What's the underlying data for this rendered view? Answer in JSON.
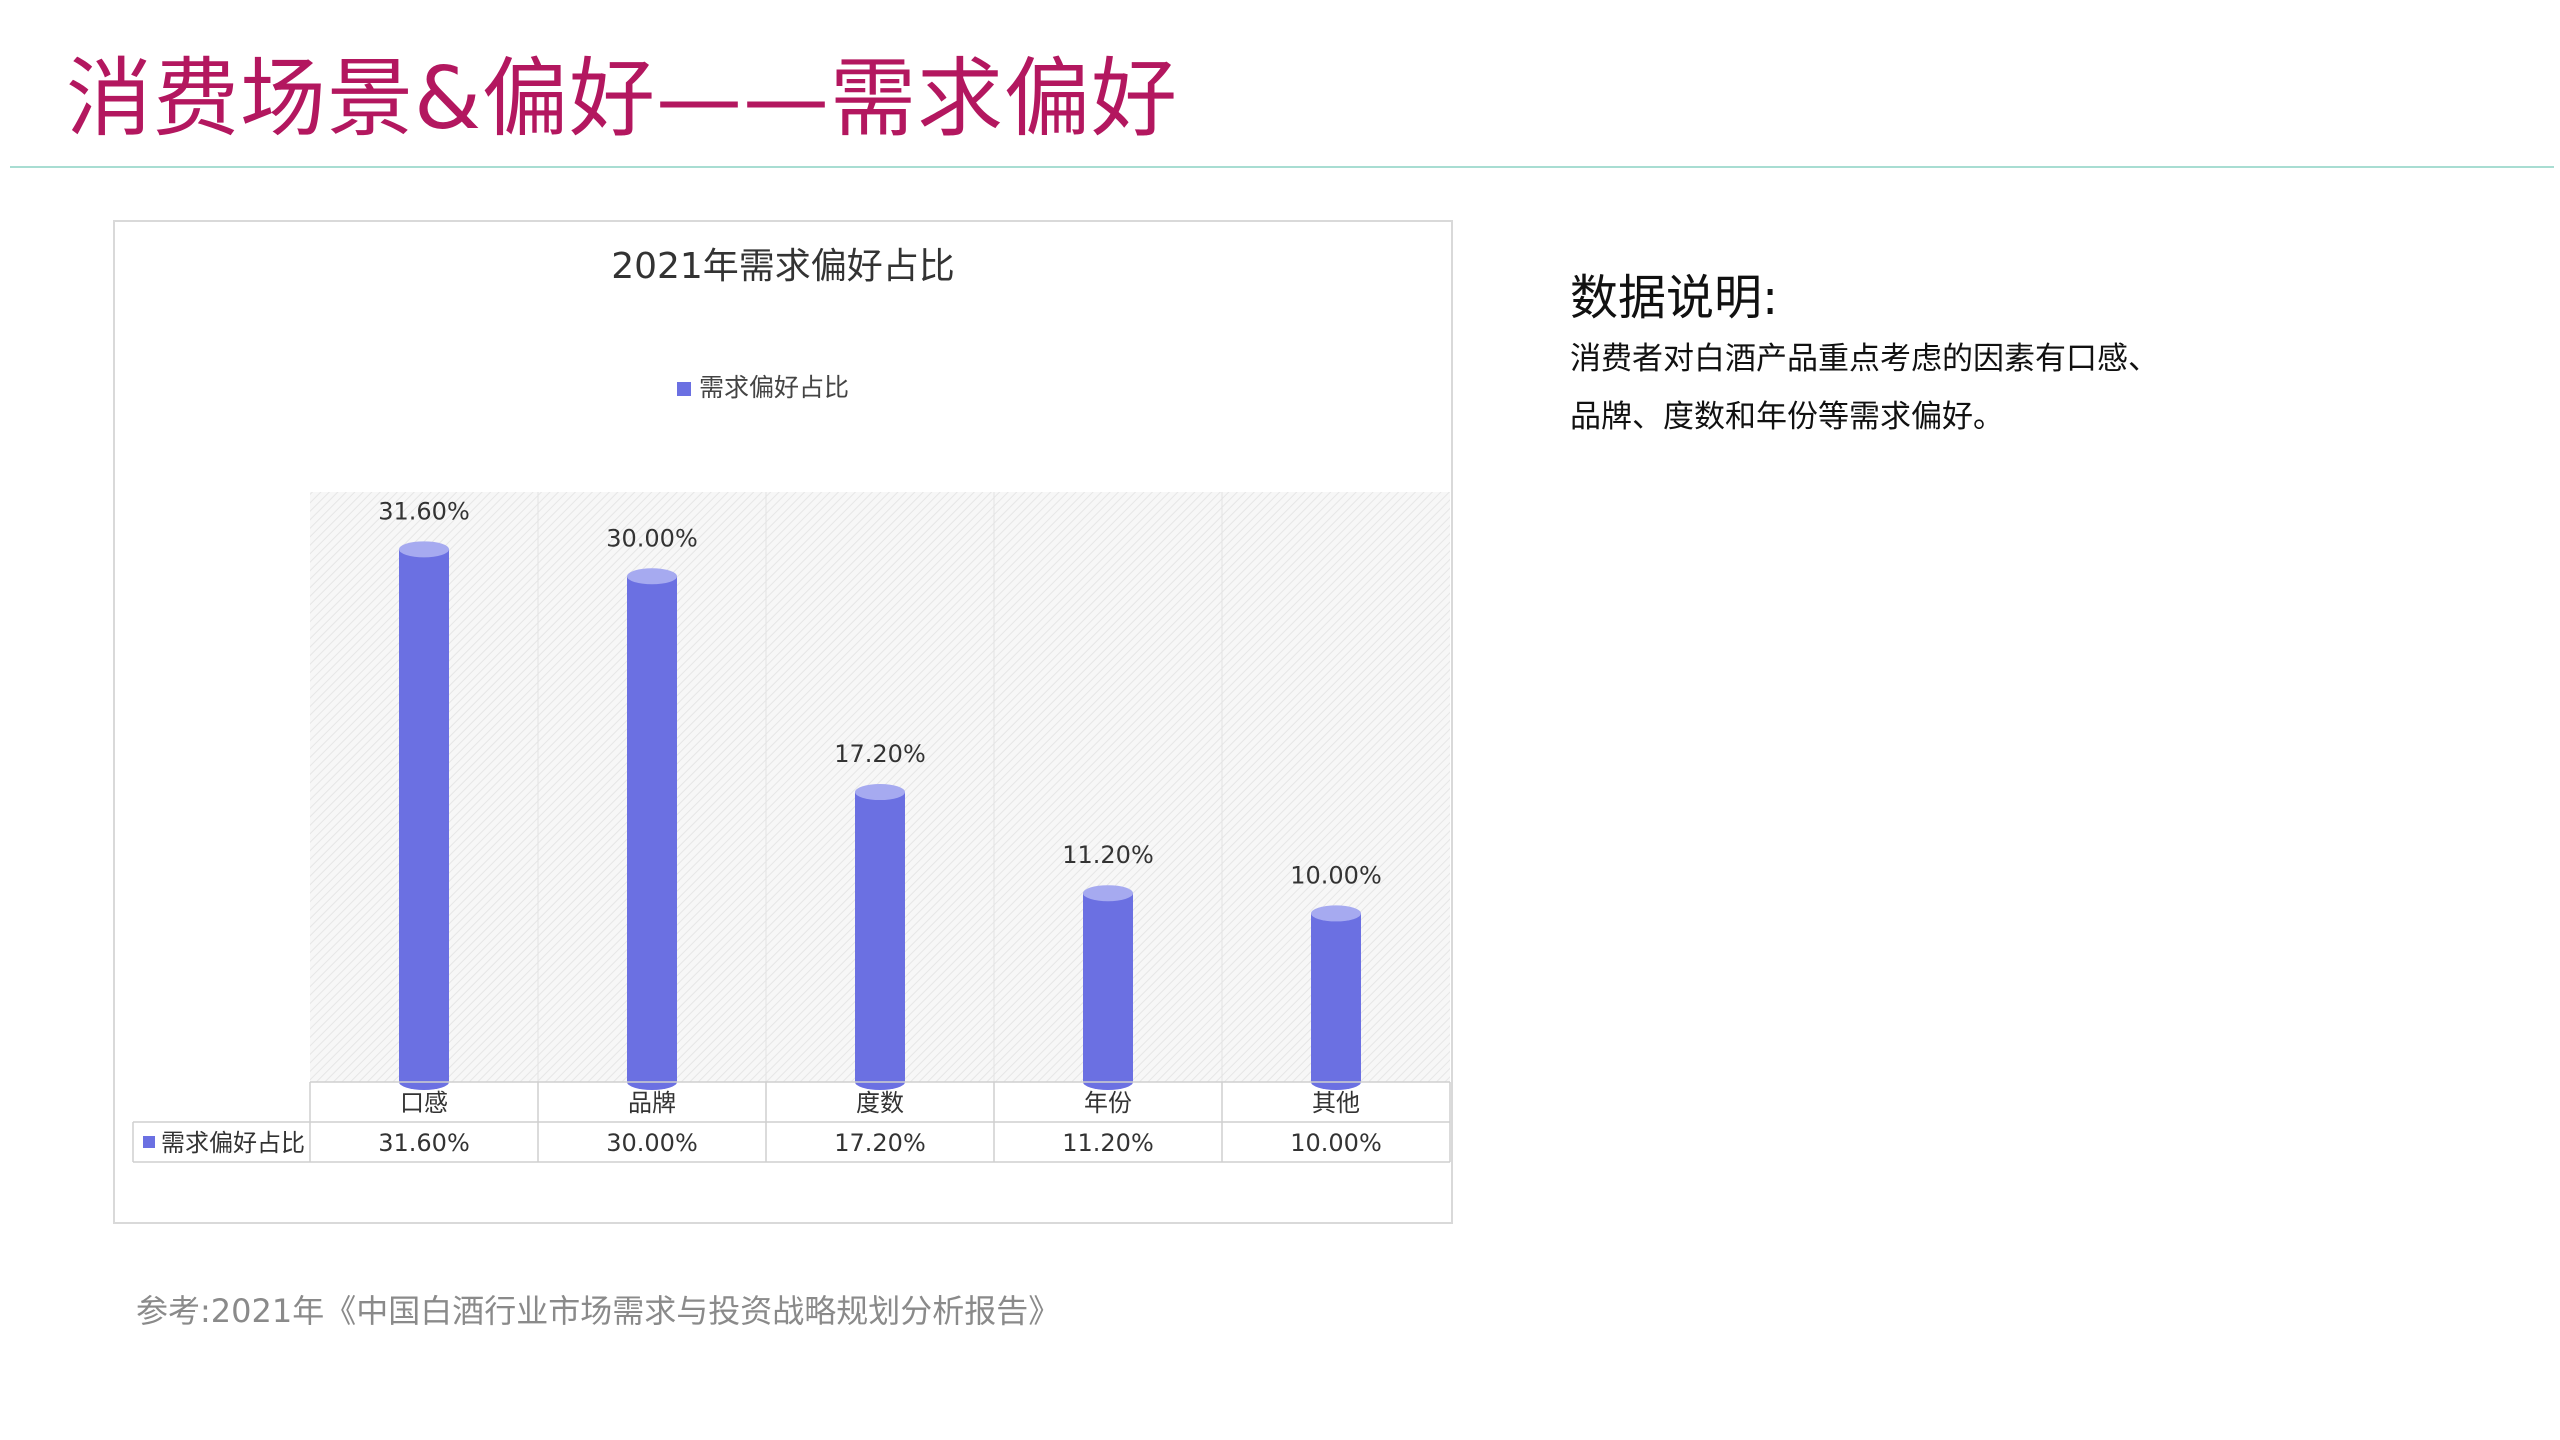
{
  "page": {
    "title": "消费场景&偏好——需求偏好",
    "description_heading": "数据说明:",
    "description_body": " 消费者对白酒产品重点考虑的因素有口感、品牌、度数和年份等需求偏好。",
    "reference": "参考:2021年《中国白酒行业市场需求与投资战略规划分析报告》"
  },
  "colors": {
    "title": "#b3175f",
    "bar": "#6b70e2",
    "bar_top": "#a6aaf0",
    "rule": "#a8ddd2"
  },
  "chart_data": {
    "type": "bar",
    "title": "2021年需求偏好占比",
    "categories": [
      "口感",
      "品牌",
      "度数",
      "年份",
      "其他"
    ],
    "series": [
      {
        "name": "需求偏好占比",
        "values": [
          31.6,
          30.0,
          17.2,
          11.2,
          10.0
        ]
      }
    ],
    "data_labels": [
      "31.60%",
      "30.00%",
      "17.20%",
      "11.20%",
      "10.00%"
    ],
    "ylim": [
      0,
      35
    ],
    "legend": "top-center",
    "data_table": true,
    "bar_style": "cylinder"
  }
}
